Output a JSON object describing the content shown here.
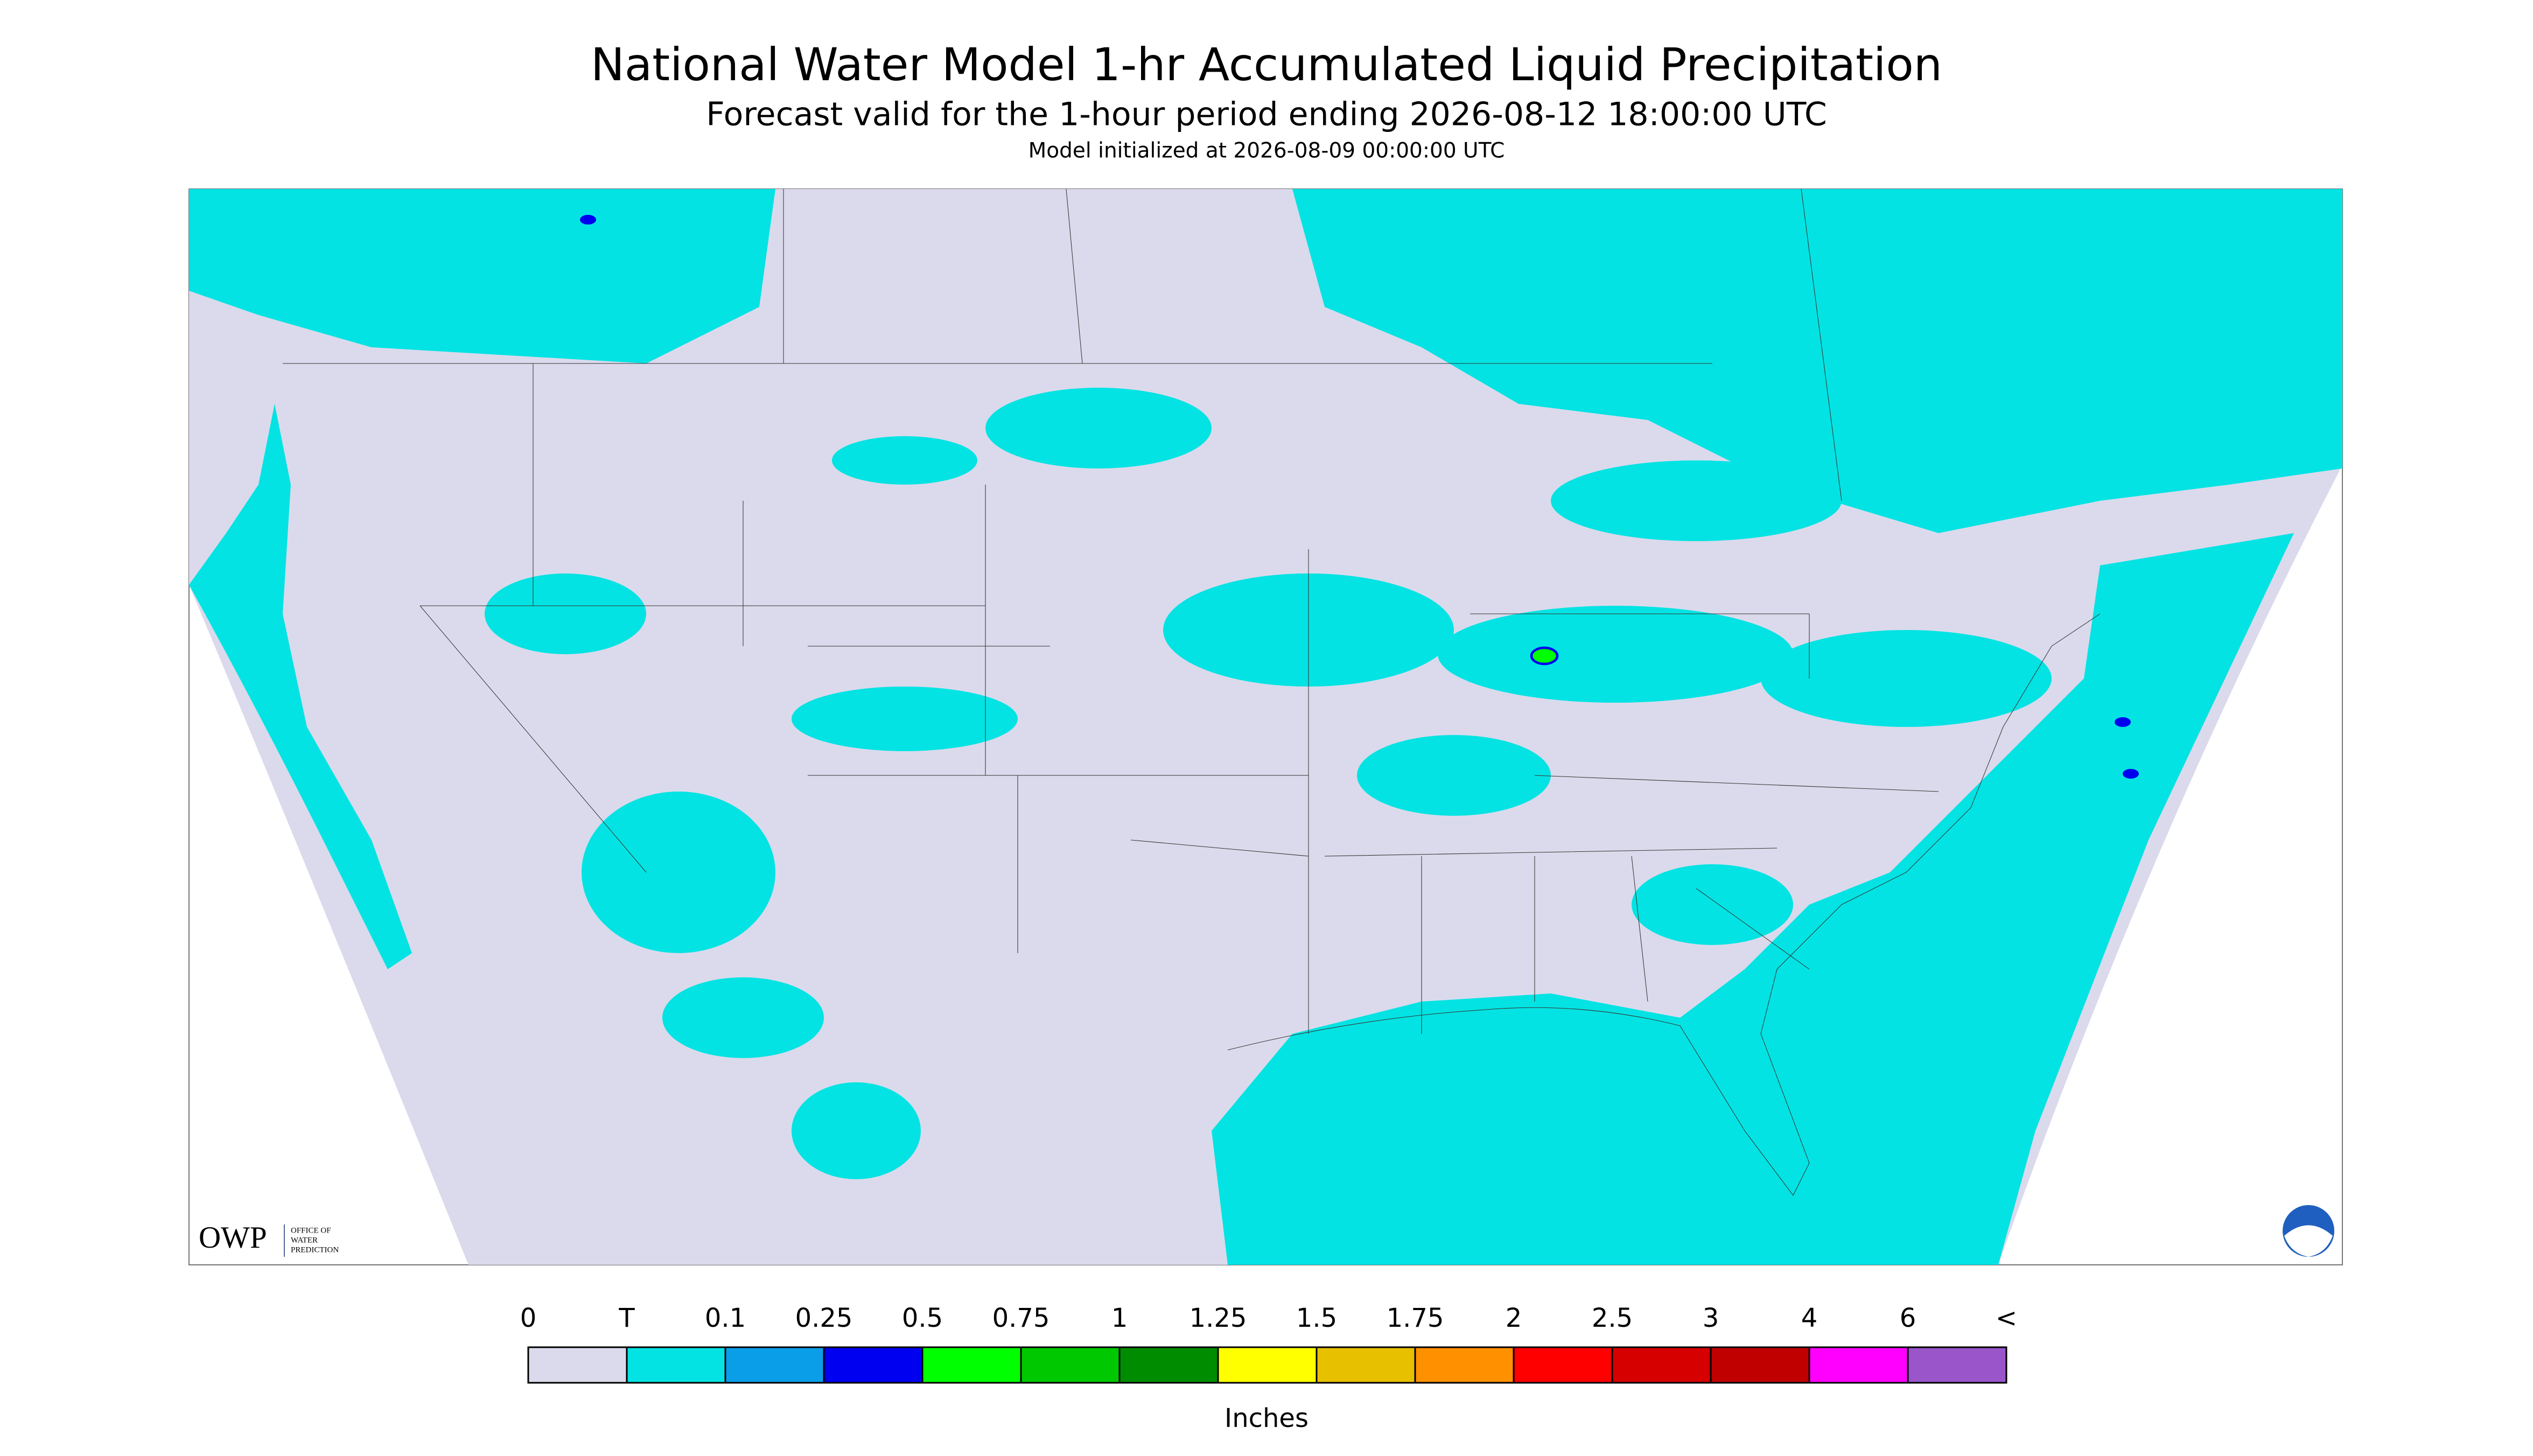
{
  "header": {
    "title": "National Water Model 1-hr Accumulated Liquid Precipitation",
    "subtitle": "Forecast valid for the 1-hour period ending 2026-08-12 18:00:00 UTC",
    "note": "Model initialized at 2026-08-09 00:00:00 UTC"
  },
  "legend": {
    "labels": [
      "0",
      "T",
      "0.1",
      "0.25",
      "0.5",
      "0.75",
      "1",
      "1.25",
      "1.5",
      "1.75",
      "2",
      "2.5",
      "3",
      "4",
      "6",
      "<"
    ],
    "colors": [
      "#dadaec",
      "#04e3e3",
      "#0a9ee8",
      "#0000f0",
      "#00ff00",
      "#00c800",
      "#008c00",
      "#ffff00",
      "#e7c000",
      "#ff9000",
      "#ff0000",
      "#d60000",
      "#c00000",
      "#ff00ff",
      "#9955c9"
    ],
    "unit": "Inches"
  },
  "logo": {
    "mark": "OWP",
    "text": [
      "OFFICE OF",
      "WATER",
      "PREDICTION"
    ]
  }
}
